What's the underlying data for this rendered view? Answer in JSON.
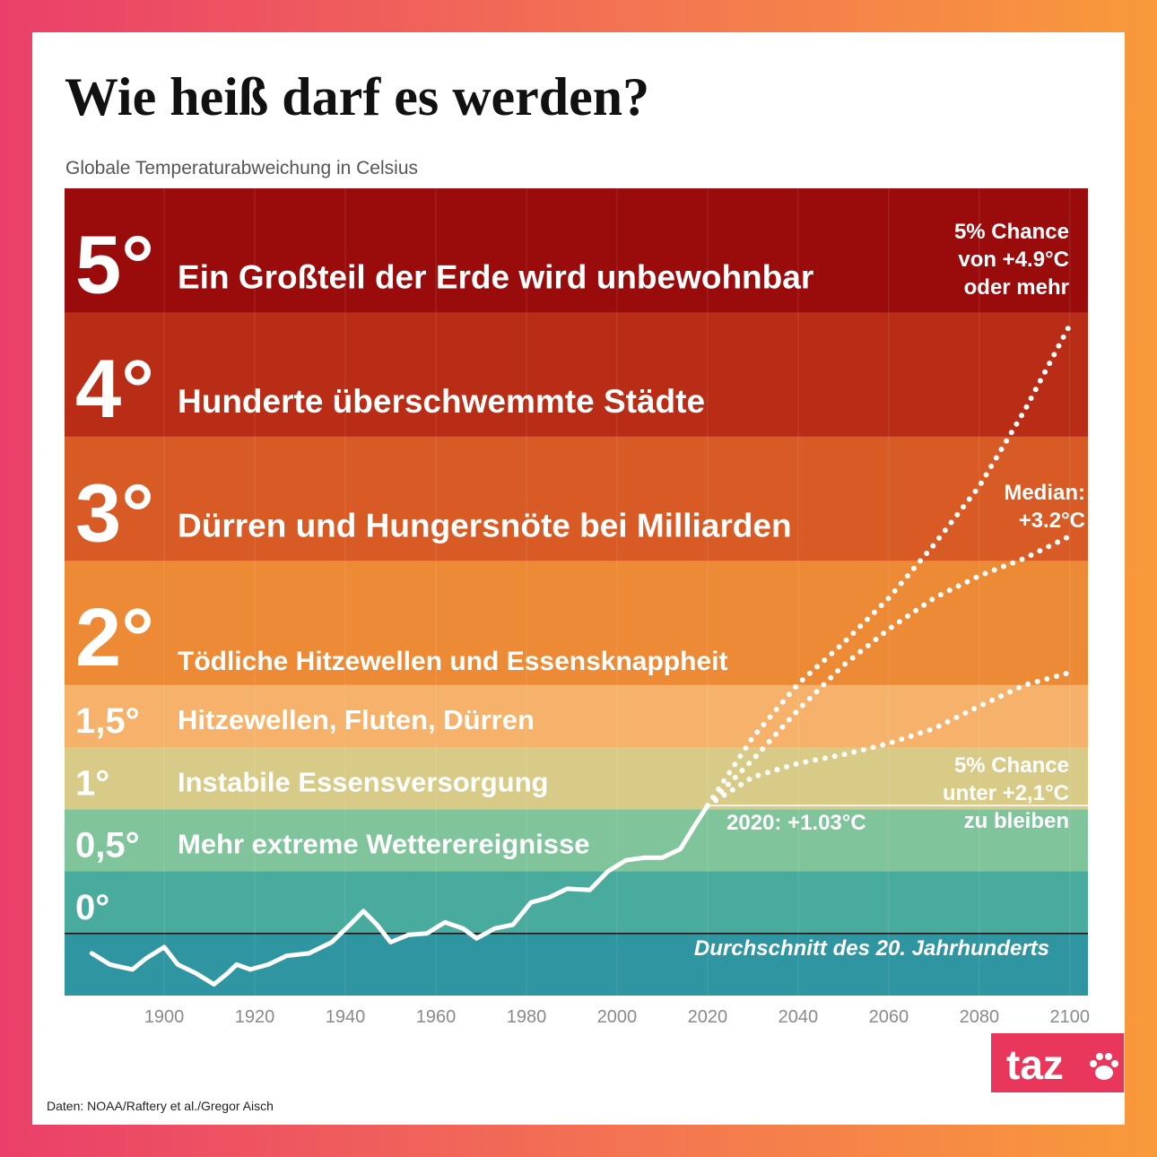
{
  "chart_data": {
    "type": "line",
    "title": "Wie heiß darf es werden?",
    "subtitle": "Globale Temperaturabweichung in Celsius",
    "source": "Daten: NOAA/Raftery et al./Gregor Aisch",
    "logo": "taz",
    "xlim": [
      1878,
      2104
    ],
    "xticks": [
      1900,
      1920,
      1940,
      1960,
      1980,
      2000,
      2020,
      2040,
      2060,
      2080,
      2100
    ],
    "ylim": [
      -0.5,
      6
    ],
    "bands": [
      {
        "from": -0.5,
        "to": 0,
        "color": "#2e95a1"
      },
      {
        "from": 0,
        "to": 0.5,
        "label": "0°",
        "color": "#49aa9e"
      },
      {
        "from": 0.5,
        "to": 1,
        "label": "0,5°",
        "text": "Mehr extreme Wetterereignisse",
        "color": "#80c49b"
      },
      {
        "from": 1,
        "to": 1.5,
        "label": "1°",
        "text": "Instabile Essensversorgung",
        "color": "#d8cb88"
      },
      {
        "from": 1.5,
        "to": 2,
        "label": "1,5°",
        "text": "Hitzewellen, Fluten, Dürren",
        "color": "#f6b26a"
      },
      {
        "from": 2,
        "to": 3,
        "label": "2°",
        "text": "Tödliche Hitzewellen und Essensknappheit",
        "color": "#ec8a36"
      },
      {
        "from": 3,
        "to": 4,
        "label": "3°",
        "text": "Dürren und Hungersnöte bei Milliarden",
        "color": "#d85a24"
      },
      {
        "from": 4,
        "to": 5,
        "label": "4°",
        "text": "Hunderte überschwemmte Städte",
        "color": "#b92c15"
      },
      {
        "from": 5,
        "to": 6,
        "label": "5°",
        "text": "Ein Großteil der Erde wird unbewohnbar",
        "color": "#9a0b0b"
      }
    ],
    "series": [
      {
        "style": "solid",
        "color": "#ffffff",
        "x": [
          1884,
          1888,
          1893,
          1896,
          1900,
          1903,
          1907,
          1911,
          1914,
          1916,
          1919,
          1923,
          1927,
          1932,
          1937,
          1941,
          1944,
          1947,
          1950,
          1954,
          1958,
          1962,
          1966,
          1969,
          1973,
          1977,
          1981,
          1985,
          1989,
          1994,
          1998,
          2002,
          2006,
          2010,
          2014,
          2017,
          2020
        ],
        "values": [
          -0.16,
          -0.25,
          -0.29,
          -0.2,
          -0.11,
          -0.25,
          -0.32,
          -0.41,
          -0.32,
          -0.25,
          -0.29,
          -0.25,
          -0.18,
          -0.16,
          -0.07,
          0.07,
          0.18,
          0.07,
          -0.07,
          -0.01,
          0,
          0.09,
          0.04,
          -0.04,
          0.04,
          0.07,
          0.25,
          0.29,
          0.36,
          0.35,
          0.5,
          0.59,
          0.61,
          0.61,
          0.68,
          0.86,
          1.03
        ]
      },
      {
        "style": "dotted",
        "color": "#ffffff",
        "x": [
          2020,
          2030,
          2040,
          2050,
          2060,
          2070,
          2080,
          2090,
          2100
        ],
        "values": [
          1.03,
          1.58,
          2.01,
          2.34,
          2.7,
          3.13,
          3.6,
          4.21,
          4.9
        ]
      },
      {
        "style": "dotted",
        "color": "#ffffff",
        "x": [
          2020,
          2030,
          2040,
          2050,
          2060,
          2070,
          2080,
          2090,
          2100
        ],
        "values": [
          1.03,
          1.4,
          1.8,
          2.16,
          2.45,
          2.7,
          2.88,
          3.02,
          3.2
        ]
      },
      {
        "style": "dotted",
        "color": "#ffffff",
        "x": [
          2020,
          2030,
          2040,
          2050,
          2060,
          2070,
          2080,
          2090,
          2100
        ],
        "values": [
          1.03,
          1.26,
          1.37,
          1.44,
          1.53,
          1.65,
          1.83,
          2.0,
          2.1
        ]
      }
    ],
    "annotations": [
      {
        "lines": [
          "5% Chance",
          "von +4.9°C",
          "oder mehr"
        ]
      },
      {
        "lines": [
          "Median:",
          "+3.2°C"
        ]
      },
      {
        "lines": [
          "5% Chance",
          "unter +2,1°C",
          "zu bleiben"
        ]
      },
      {
        "lines": [
          "2020: +1.03°C"
        ]
      },
      {
        "lines": [
          "Durchschnitt des 20. Jahrhunderts"
        ]
      }
    ]
  }
}
